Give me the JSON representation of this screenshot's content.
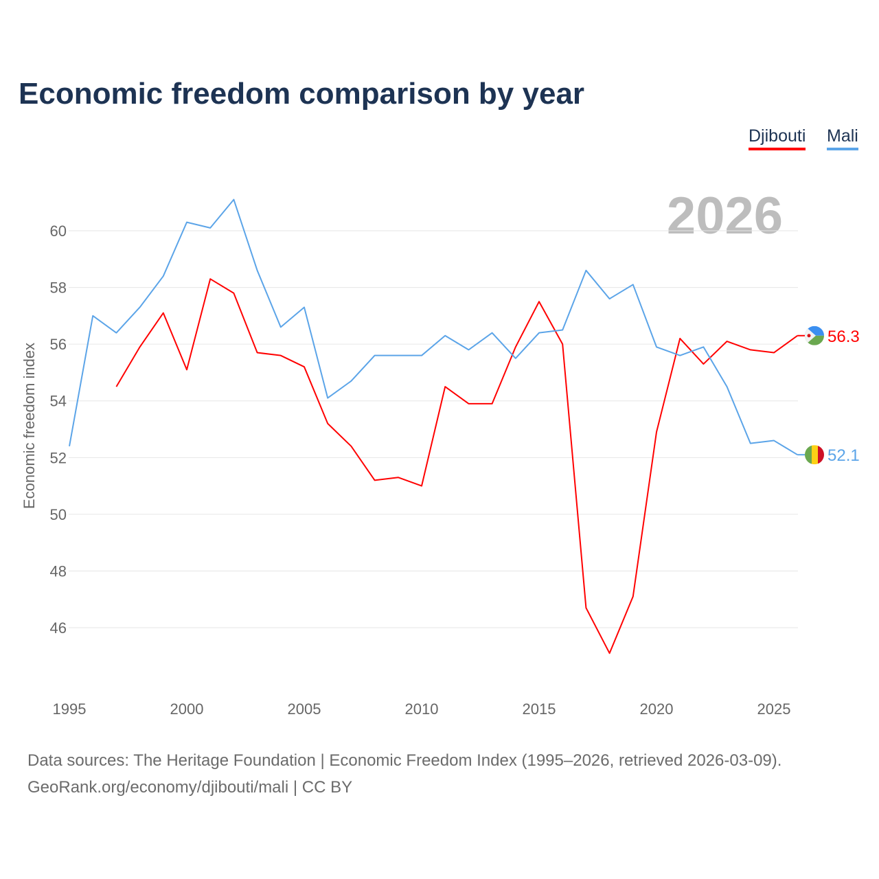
{
  "title": "Economic freedom comparison by year",
  "legend": [
    {
      "label": "Djibouti",
      "color": "#ff0000"
    },
    {
      "label": "Mali",
      "color": "#5ba4e8"
    }
  ],
  "footer": {
    "line1": "Data sources: The Heritage Foundation | Economic Freedom Index (1995–2026, retrieved 2026-03-09).",
    "line2": "GeoRank.org/economy/djibouti/mali | CC BY"
  },
  "chart_data": {
    "type": "line",
    "title": "Economic freedom comparison by year",
    "year_label": "2026",
    "xlabel": "",
    "ylabel": "Economic freedom index",
    "xlim": [
      1995,
      2026
    ],
    "ylim": [
      44.2,
      61.5
    ],
    "xticks": [
      1995,
      2000,
      2005,
      2010,
      2015,
      2020,
      2025
    ],
    "yticks": [
      46,
      48,
      50,
      52,
      54,
      56,
      58,
      60
    ],
    "grid": true,
    "series": [
      {
        "name": "Djibouti",
        "color": "#ff0000",
        "end_label": "56.3",
        "x": [
          1997,
          1998,
          1999,
          2000,
          2001,
          2002,
          2003,
          2004,
          2005,
          2006,
          2007,
          2008,
          2009,
          2010,
          2011,
          2012,
          2013,
          2014,
          2015,
          2016,
          2017,
          2018,
          2019,
          2020,
          2021,
          2022,
          2023,
          2024,
          2025,
          2026
        ],
        "values": [
          54.5,
          55.9,
          57.1,
          55.1,
          58.3,
          57.8,
          55.7,
          55.6,
          55.2,
          53.2,
          52.4,
          51.2,
          51.3,
          51.0,
          54.5,
          53.9,
          53.9,
          55.9,
          57.5,
          56.0,
          46.7,
          45.1,
          47.1,
          52.9,
          56.2,
          55.3,
          56.1,
          55.8,
          55.7,
          56.3
        ]
      },
      {
        "name": "Mali",
        "color": "#5ba4e8",
        "end_label": "52.1",
        "x": [
          1995,
          1996,
          1997,
          1998,
          1999,
          2000,
          2001,
          2002,
          2003,
          2004,
          2005,
          2006,
          2007,
          2008,
          2009,
          2010,
          2011,
          2012,
          2013,
          2014,
          2015,
          2016,
          2017,
          2018,
          2019,
          2020,
          2021,
          2022,
          2023,
          2024,
          2025,
          2026
        ],
        "values": [
          52.4,
          57.0,
          56.4,
          57.3,
          58.4,
          60.3,
          60.1,
          61.1,
          58.6,
          56.6,
          57.3,
          54.1,
          54.7,
          55.6,
          55.6,
          55.6,
          56.3,
          55.8,
          56.4,
          55.5,
          56.4,
          56.5,
          58.6,
          57.6,
          58.1,
          55.9,
          55.6,
          55.9,
          54.5,
          52.5,
          52.6,
          52.1
        ]
      }
    ]
  }
}
